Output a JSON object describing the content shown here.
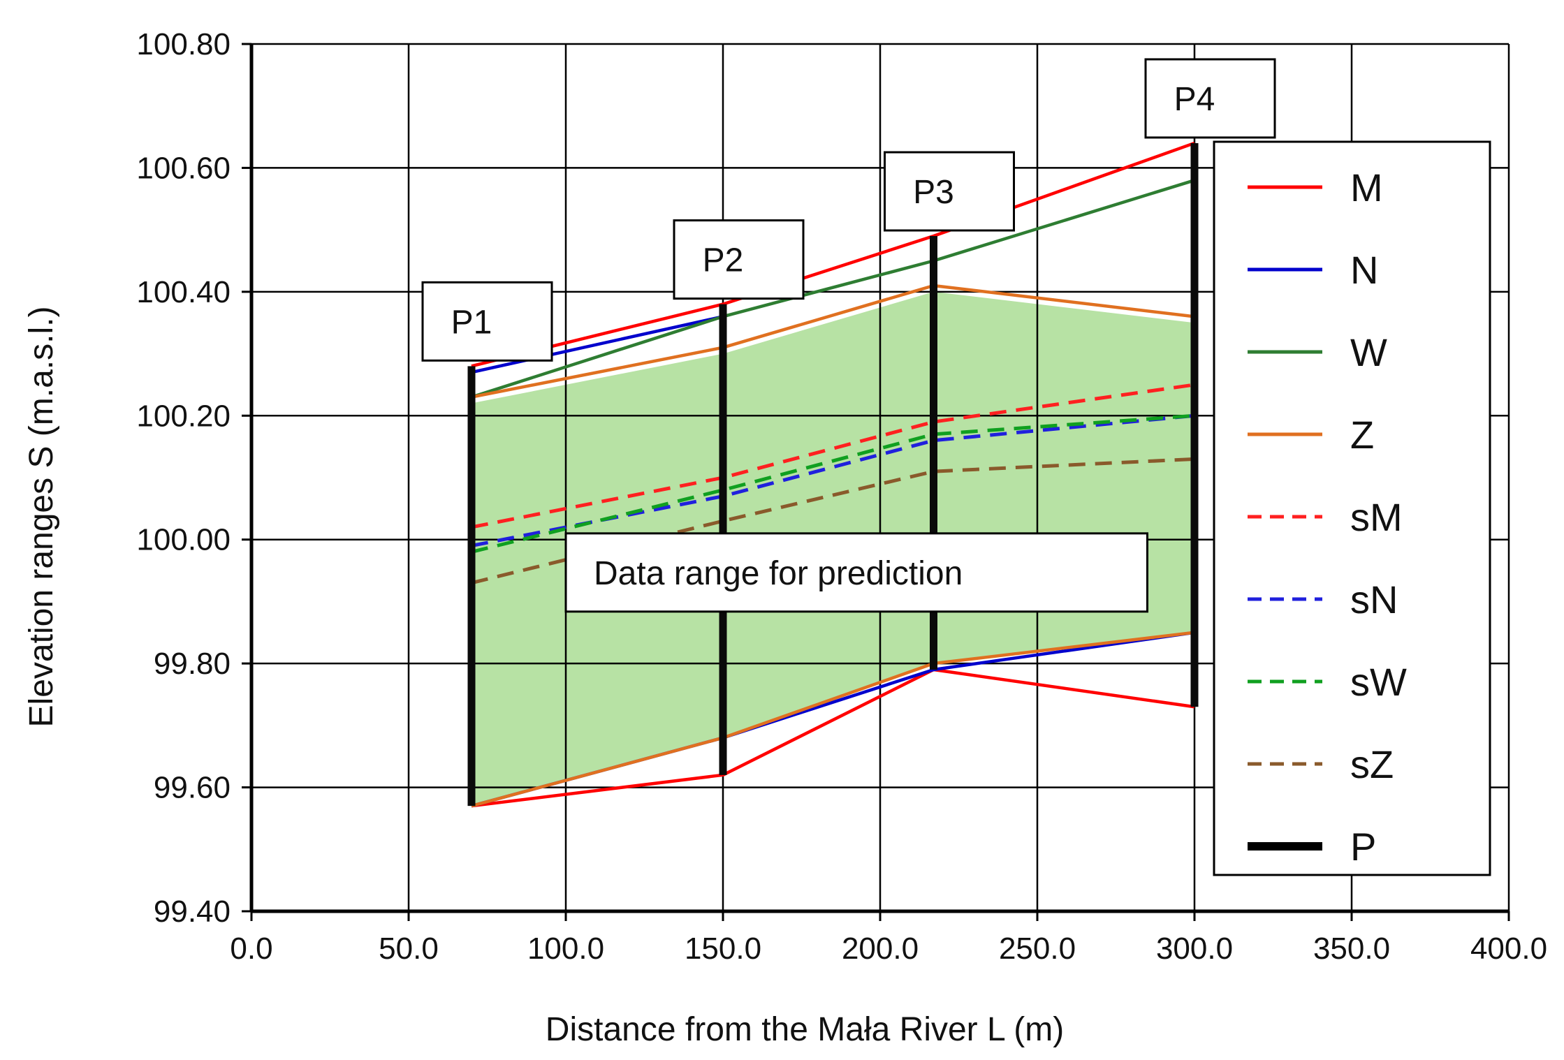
{
  "chart_data": {
    "type": "line",
    "xlabel": "Distance from the Mała River L (m)",
    "ylabel": "Elevation ranges   S (m.a.s.l.)",
    "xlim": [
      0,
      400
    ],
    "ylim": [
      99.4,
      100.8
    ],
    "grid": true,
    "legend_position": "right",
    "x_ticks": [
      0,
      50,
      100,
      150,
      200,
      250,
      300,
      350,
      400
    ],
    "x_tick_labels": [
      "0.0",
      "50.0",
      "100.0",
      "150.0",
      "200.0",
      "250.0",
      "300.0",
      "350.0",
      "400.0"
    ],
    "y_ticks": [
      99.4,
      99.6,
      99.8,
      100.0,
      100.2,
      100.4,
      100.6,
      100.8
    ],
    "y_tick_labels": [
      "99.40",
      "99.60",
      "99.80",
      "100.00",
      "100.20",
      "100.40",
      "100.60",
      "100.80"
    ],
    "data_range": {
      "label": "Data range for prediction",
      "upper": [
        [
          70,
          100.22
        ],
        [
          150,
          100.3
        ],
        [
          217,
          100.4
        ],
        [
          300,
          100.35
        ]
      ],
      "lower": [
        [
          300,
          99.85
        ],
        [
          217,
          99.8
        ],
        [
          150,
          99.68
        ],
        [
          70,
          99.57
        ]
      ],
      "color": "#b7e2a4"
    },
    "series": [
      {
        "name": "M",
        "style": "solid",
        "color": "#ff0000",
        "role": "upper",
        "points": [
          [
            70,
            100.28
          ],
          [
            150,
            100.38
          ],
          [
            217,
            100.49
          ],
          [
            300,
            100.64
          ]
        ]
      },
      {
        "name": "M",
        "style": "solid",
        "color": "#ff0000",
        "role": "lower",
        "points": [
          [
            70,
            99.57
          ],
          [
            150,
            99.62
          ],
          [
            217,
            99.79
          ],
          [
            300,
            99.73
          ]
        ]
      },
      {
        "name": "N",
        "style": "solid",
        "color": "#0000cc",
        "role": "upper",
        "points": [
          [
            70,
            100.27
          ],
          [
            150,
            100.36
          ]
        ]
      },
      {
        "name": "N",
        "style": "solid",
        "color": "#0000cc",
        "role": "lower",
        "points": [
          [
            70,
            99.57
          ],
          [
            150,
            99.68
          ],
          [
            217,
            99.79
          ],
          [
            300,
            99.85
          ]
        ]
      },
      {
        "name": "W",
        "style": "solid",
        "color": "#2e7d32",
        "role": "upper",
        "points": [
          [
            70,
            100.23
          ],
          [
            150,
            100.36
          ],
          [
            217,
            100.45
          ],
          [
            300,
            100.58
          ]
        ]
      },
      {
        "name": "Z",
        "style": "solid",
        "color": "#e07020",
        "role": "upper",
        "points": [
          [
            70,
            100.23
          ],
          [
            150,
            100.31
          ],
          [
            217,
            100.41
          ],
          [
            300,
            100.36
          ]
        ]
      },
      {
        "name": "Z",
        "style": "solid",
        "color": "#e07020",
        "role": "lower",
        "points": [
          [
            70,
            99.57
          ],
          [
            150,
            99.68
          ],
          [
            217,
            99.8
          ],
          [
            300,
            99.85
          ]
        ]
      },
      {
        "name": "sM",
        "style": "dashed",
        "color": "#ff2020",
        "points": [
          [
            70,
            100.02
          ],
          [
            150,
            100.1
          ],
          [
            217,
            100.19
          ],
          [
            300,
            100.25
          ]
        ]
      },
      {
        "name": "sN",
        "style": "dashed",
        "color": "#2020dd",
        "points": [
          [
            70,
            99.99
          ],
          [
            150,
            100.07
          ],
          [
            217,
            100.16
          ],
          [
            300,
            100.2
          ]
        ]
      },
      {
        "name": "sW",
        "style": "dashed",
        "color": "#10a020",
        "points": [
          [
            70,
            99.98
          ],
          [
            150,
            100.08
          ],
          [
            217,
            100.17
          ],
          [
            300,
            100.2
          ]
        ]
      },
      {
        "name": "sZ",
        "style": "dashed",
        "color": "#8a5a2b",
        "points": [
          [
            70,
            99.93
          ],
          [
            150,
            100.03
          ],
          [
            217,
            100.11
          ],
          [
            300,
            100.13
          ]
        ]
      }
    ],
    "profiles": [
      {
        "name": "P1",
        "x": 70,
        "ymin": 99.57,
        "ymax": 100.28
      },
      {
        "name": "P2",
        "x": 150,
        "ymin": 99.62,
        "ymax": 100.38
      },
      {
        "name": "P3",
        "x": 217,
        "ymin": 99.79,
        "ymax": 100.49
      },
      {
        "name": "P4",
        "x": 300,
        "ymin": 99.73,
        "ymax": 100.64
      }
    ],
    "legend": [
      {
        "label": "M",
        "style": "solid",
        "color": "#ff0000"
      },
      {
        "label": "N",
        "style": "solid",
        "color": "#0000cc"
      },
      {
        "label": "W",
        "style": "solid",
        "color": "#2e7d32"
      },
      {
        "label": "Z",
        "style": "solid",
        "color": "#e07020"
      },
      {
        "label": "sM",
        "style": "dashed",
        "color": "#ff2020"
      },
      {
        "label": "sN",
        "style": "dashed",
        "color": "#2020dd"
      },
      {
        "label": "sW",
        "style": "dashed",
        "color": "#10a020"
      },
      {
        "label": "sZ",
        "style": "dashed",
        "color": "#8a5a2b"
      },
      {
        "label": "P",
        "style": "thick",
        "color": "#000000"
      }
    ]
  }
}
